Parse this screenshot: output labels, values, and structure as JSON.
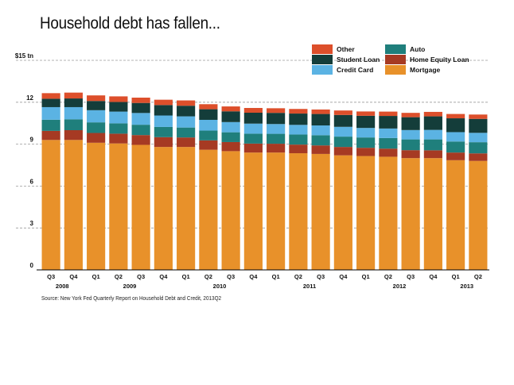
{
  "title": "Household debt has fallen...",
  "source": "Source: New York Fed Quarterly Report on Household Debt and Credit, 2013Q2",
  "colors": {
    "Mortgage": "#e8912a",
    "Home Equity Loan": "#a63a23",
    "Auto": "#1f7f7c",
    "Credit Card": "#5bb3e3",
    "Student Loan": "#143d3a",
    "Other": "#dd4f2b",
    "grid": "#9a9a9a",
    "axis": "#000000"
  },
  "chart_data": {
    "type": "bar",
    "stacked": true,
    "categories": [
      "Q3",
      "Q4",
      "Q1",
      "Q2",
      "Q3",
      "Q4",
      "Q1",
      "Q2",
      "Q3",
      "Q4",
      "Q1",
      "Q2",
      "Q3",
      "Q4",
      "Q1",
      "Q2",
      "Q3",
      "Q4",
      "Q1",
      "Q2"
    ],
    "year_labels": [
      {
        "label": "2008",
        "span": [
          0,
          1
        ]
      },
      {
        "label": "2009",
        "span": [
          2,
          5
        ]
      },
      {
        "label": "2010",
        "span": [
          6,
          9
        ]
      },
      {
        "label": "2011",
        "span": [
          10,
          13
        ]
      },
      {
        "label": "2012",
        "span": [
          14,
          17
        ]
      },
      {
        "label": "2013",
        "span": [
          18,
          19
        ]
      }
    ],
    "yticks": [
      0,
      3,
      6,
      9,
      12,
      15
    ],
    "ytick_labels": [
      "0",
      "3",
      "6",
      "9",
      "12",
      "$15 tn"
    ],
    "ylim": [
      0,
      15
    ],
    "grid": true,
    "legend_position": "top-right",
    "series": [
      {
        "name": "Mortgage",
        "values": [
          9.3,
          9.3,
          9.1,
          9.05,
          8.95,
          8.8,
          8.8,
          8.6,
          8.5,
          8.4,
          8.4,
          8.35,
          8.3,
          8.2,
          8.15,
          8.1,
          8.0,
          8.0,
          7.85,
          7.8
        ]
      },
      {
        "name": "Home Equity Loan",
        "values": [
          0.65,
          0.7,
          0.7,
          0.7,
          0.7,
          0.7,
          0.68,
          0.67,
          0.65,
          0.64,
          0.63,
          0.62,
          0.61,
          0.6,
          0.59,
          0.58,
          0.57,
          0.56,
          0.55,
          0.54
        ]
      },
      {
        "name": "Auto",
        "values": [
          0.8,
          0.78,
          0.76,
          0.74,
          0.74,
          0.73,
          0.71,
          0.7,
          0.7,
          0.71,
          0.71,
          0.72,
          0.73,
          0.74,
          0.74,
          0.76,
          0.77,
          0.78,
          0.79,
          0.8
        ]
      },
      {
        "name": "Credit Card",
        "values": [
          0.9,
          0.87,
          0.87,
          0.84,
          0.84,
          0.82,
          0.8,
          0.77,
          0.73,
          0.72,
          0.7,
          0.69,
          0.7,
          0.7,
          0.68,
          0.68,
          0.67,
          0.68,
          0.67,
          0.67
        ]
      },
      {
        "name": "Student Loan",
        "values": [
          0.6,
          0.62,
          0.66,
          0.69,
          0.72,
          0.75,
          0.76,
          0.76,
          0.77,
          0.78,
          0.8,
          0.81,
          0.82,
          0.85,
          0.87,
          0.9,
          0.92,
          0.97,
          0.99,
          1.0
        ]
      },
      {
        "name": "Other",
        "values": [
          0.4,
          0.42,
          0.4,
          0.4,
          0.38,
          0.38,
          0.38,
          0.36,
          0.35,
          0.34,
          0.33,
          0.33,
          0.32,
          0.32,
          0.31,
          0.31,
          0.31,
          0.32,
          0.31,
          0.31
        ]
      }
    ],
    "legend_rows": [
      [
        "Other",
        "Auto"
      ],
      [
        "Student Loan",
        "Home Equity Loan"
      ],
      [
        "Credit Card",
        "Mortgage"
      ]
    ]
  }
}
